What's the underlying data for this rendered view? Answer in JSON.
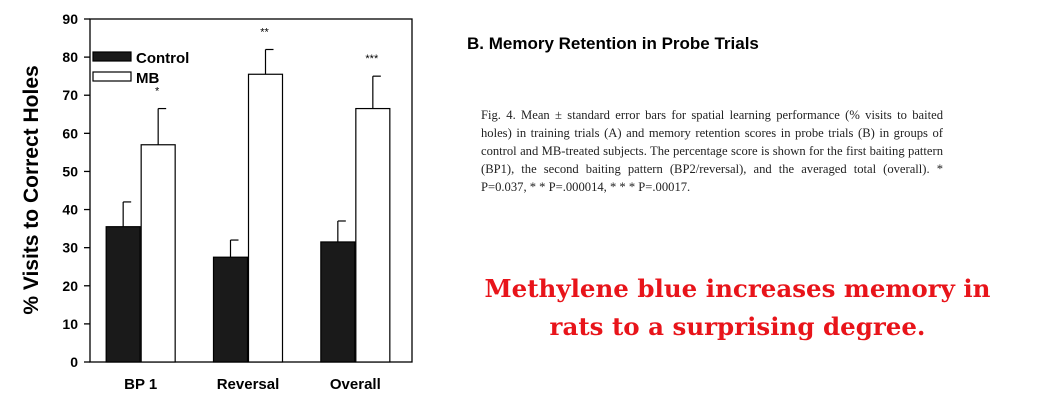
{
  "chart_data": {
    "type": "bar",
    "categories": [
      "BP 1",
      "Reversal",
      "Overall"
    ],
    "series": [
      {
        "name": "Control",
        "values": [
          35.5,
          27.5,
          31.5
        ],
        "errors": [
          6.5,
          4.5,
          5.5
        ],
        "color": "#1a1a1a"
      },
      {
        "name": "MB",
        "values": [
          57,
          75.5,
          66.5
        ],
        "errors": [
          9.5,
          6.5,
          8.5
        ],
        "color": "#ffffff"
      }
    ],
    "significance": [
      "*",
      "**",
      "***"
    ],
    "ylabel": "% Visits to Correct Holes",
    "xlabel": "",
    "ylim": [
      0,
      90
    ],
    "yticks": [
      0,
      10,
      20,
      30,
      40,
      50,
      60,
      70,
      80,
      90
    ],
    "grid": false,
    "legend_position": "top-left"
  },
  "panel_title": "B.  Memory Retention in Probe Trials",
  "caption": "Fig. 4. Mean ± standard error bars for spatial learning performance (% visits to baited holes) in training trials (A) and memory retention scores in probe trials (B) in groups of control and MB-treated subjects. The percentage score is shown for the first baiting pattern (BP1), the second baiting pattern (BP2/reversal), and the averaged total (overall). * P=0.037, * * P=.000014, * * * P=.00017.",
  "headline": "Methylene blue increases memory in rats to a surprising degree.",
  "colors": {
    "headline": "#e8141a",
    "axis": "#000000"
  }
}
